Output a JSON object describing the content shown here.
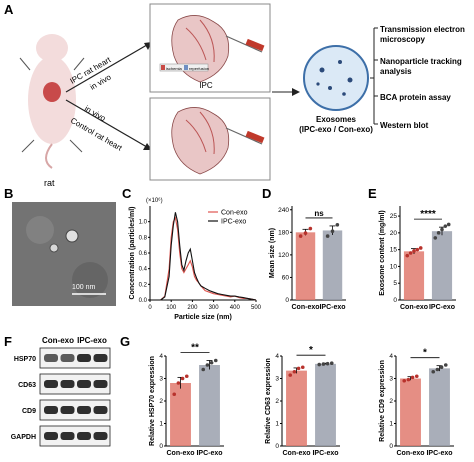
{
  "panel_letters": {
    "A": "A",
    "B": "B",
    "C": "C",
    "D": "D",
    "E": "E",
    "F": "F",
    "G": "G"
  },
  "panel_a": {
    "rat_label": "rat",
    "ipc_arrow_line1": "IPC rat heart",
    "ipc_arrow_line2": "in vivo",
    "ctrl_arrow_line1": "in vivo",
    "ctrl_arrow_line2": "Control rat heart",
    "ipc_box_label": "IPC",
    "ischemia_label": "ischemia",
    "reperfusion_label": "reperfusion",
    "exosomes_line1": "Exosomes",
    "exosomes_line2": "(IPC-exo / Con-exo)",
    "methods": [
      {
        "line1": "Transmission electron",
        "line2": "microscopy"
      },
      {
        "line1": "Nanoparticle tracking",
        "line2": "analysis"
      },
      {
        "line1": "BCA protein assay",
        "line2": ""
      },
      {
        "line1": "Western blot",
        "line2": ""
      }
    ],
    "colors": {
      "ischemia": "#c94a45",
      "reperfusion": "#6f8fc3",
      "box_border": "#888888"
    }
  },
  "panel_b": {
    "scale_label": "100 nm"
  },
  "panel_f": {
    "col_labels": [
      "Con-exo",
      "IPC-exo"
    ],
    "rows": [
      "HSP70",
      "CD63",
      "CD9",
      "GAPDH"
    ]
  },
  "colors": {
    "con": "#e07a6e",
    "ipc": "#9aa0ad",
    "con_line": "#e0554f",
    "ipc_line": "#111111"
  },
  "chart_data": [
    {
      "id": "C",
      "type": "line",
      "exponent_label": "(×10⁶)",
      "xlabel": "Particle size (nm)",
      "ylabel": "Concentration (particles/ml)",
      "xlim": [
        0,
        500
      ],
      "ylim": [
        0,
        1.2
      ],
      "xticks": [
        0,
        100,
        200,
        300,
        400,
        500
      ],
      "yticks": [
        0.0,
        0.2,
        0.4,
        0.6,
        0.8,
        1.0
      ],
      "legend": "top-right",
      "series": [
        {
          "name": "Con-exo",
          "x": [
            50,
            70,
            90,
            100,
            110,
            120,
            130,
            140,
            150,
            160,
            170,
            180,
            190,
            200,
            210,
            220,
            230,
            240,
            260,
            280,
            300,
            320,
            340,
            360,
            380,
            400,
            420,
            440,
            460,
            480,
            500
          ],
          "y": [
            0,
            0.05,
            0.4,
            0.8,
            1.0,
            1.05,
            0.9,
            0.6,
            0.4,
            0.35,
            0.4,
            0.45,
            0.5,
            0.42,
            0.3,
            0.25,
            0.22,
            0.18,
            0.12,
            0.1,
            0.08,
            0.07,
            0.06,
            0.05,
            0.04,
            0.05,
            0.03,
            0.02,
            0.02,
            0.01,
            0
          ]
        },
        {
          "name": "IPC-exo",
          "x": [
            50,
            70,
            90,
            100,
            110,
            120,
            130,
            140,
            150,
            160,
            170,
            180,
            190,
            200,
            210,
            220,
            230,
            240,
            260,
            280,
            300,
            320,
            340,
            360,
            380,
            400,
            420,
            440,
            460,
            480,
            500
          ],
          "y": [
            0,
            0.04,
            0.3,
            0.7,
            0.95,
            1.12,
            1.0,
            0.7,
            0.45,
            0.38,
            0.5,
            0.6,
            0.65,
            0.5,
            0.35,
            0.28,
            0.22,
            0.18,
            0.15,
            0.12,
            0.1,
            0.08,
            0.07,
            0.06,
            0.05,
            0.05,
            0.04,
            0.03,
            0.02,
            0.01,
            0
          ]
        }
      ]
    },
    {
      "id": "D",
      "type": "bar",
      "categories": [
        "Con-exo",
        "IPC-exo"
      ],
      "values": [
        180,
        185
      ],
      "errors": [
        8,
        12
      ],
      "points": [
        [
          170,
          178,
          190
        ],
        [
          170,
          183,
          200
        ]
      ],
      "ylabel": "Mean size (nm)",
      "ylim": [
        0,
        250
      ],
      "yticks": [
        0,
        60,
        120,
        180,
        240
      ],
      "significance": "ns"
    },
    {
      "id": "E",
      "type": "bar",
      "categories": [
        "Con-exo",
        "IPC-exo"
      ],
      "values": [
        14.5,
        20.5
      ],
      "errors": [
        0.8,
        1.2
      ],
      "points": [
        [
          13.2,
          14.0,
          14.6,
          15.0,
          15.5
        ],
        [
          18.5,
          20.0,
          21.0,
          22.0,
          22.5
        ]
      ],
      "ylabel": "Exosome content (mg/ml)",
      "ylim": [
        0,
        28
      ],
      "yticks": [
        0,
        5,
        10,
        15,
        20,
        25
      ],
      "significance": "****"
    },
    {
      "id": "G1",
      "type": "bar",
      "categories": [
        "Con-exo",
        "IPC-exo"
      ],
      "values": [
        2.8,
        3.6
      ],
      "errors": [
        0.25,
        0.2
      ],
      "points": [
        [
          2.3,
          2.8,
          3.0,
          3.1
        ],
        [
          3.4,
          3.6,
          3.7,
          3.8
        ]
      ],
      "ylabel": "Relative HSP70 expression",
      "ylim": [
        0,
        4
      ],
      "yticks": [
        0,
        1,
        2,
        3,
        4
      ],
      "significance": "**"
    },
    {
      "id": "G2",
      "type": "bar",
      "categories": [
        "Con-exo",
        "IPC-exo"
      ],
      "values": [
        3.35,
        3.65
      ],
      "errors": [
        0.12,
        0.03
      ],
      "points": [
        [
          3.15,
          3.3,
          3.45,
          3.5
        ],
        [
          3.62,
          3.64,
          3.66,
          3.68
        ]
      ],
      "ylabel": "Relative CD63 expression",
      "ylim": [
        0,
        4
      ],
      "yticks": [
        0,
        1,
        2,
        3,
        4
      ],
      "significance": "*"
    },
    {
      "id": "G3",
      "type": "bar",
      "categories": [
        "Con-exo",
        "IPC-exo"
      ],
      "values": [
        3.0,
        3.45
      ],
      "errors": [
        0.08,
        0.12
      ],
      "points": [
        [
          2.9,
          2.95,
          3.05,
          3.1
        ],
        [
          3.3,
          3.4,
          3.5,
          3.6
        ]
      ],
      "ylabel": "Relative CD9 expression",
      "ylim": [
        0,
        4
      ],
      "yticks": [
        0,
        1,
        2,
        3,
        4
      ],
      "significance": "*"
    }
  ]
}
